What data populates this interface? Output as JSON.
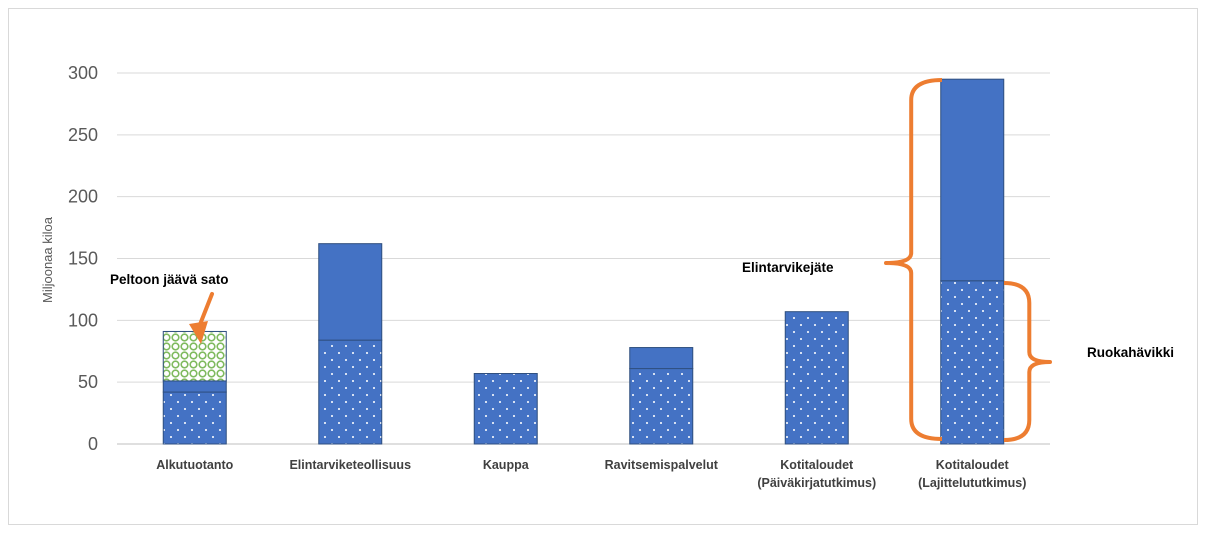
{
  "chart_data": {
    "type": "bar",
    "stacked": true,
    "ylabel": "Miljoonaa kiloa",
    "ylim": [
      0,
      300
    ],
    "yticks": [
      0,
      50,
      100,
      150,
      200,
      250,
      300
    ],
    "grid": true,
    "categories": [
      [
        "Alkutuotanto"
      ],
      [
        "Elintarviketeollisuus"
      ],
      [
        "Kauppa"
      ],
      [
        "Ravitsemispalvelut"
      ],
      [
        "Kotitaloudet",
        "(Päiväkirjatutkimus)"
      ],
      [
        "Kotitaloudet",
        "(Lajittelututkimus)"
      ]
    ],
    "series": [
      {
        "key": "ruokahavikki",
        "color": "#4472c4",
        "pattern": "dots",
        "values": [
          42,
          84,
          57,
          61,
          107,
          132
        ]
      },
      {
        "key": "elintarvikejate",
        "color": "#4472c4",
        "pattern": "solid",
        "values": [
          9,
          78,
          0,
          17,
          0,
          163
        ]
      },
      {
        "key": "peltoon",
        "color": "#a9d18e",
        "pattern": "lattice",
        "values": [
          40,
          0,
          0,
          0,
          0,
          0
        ]
      }
    ],
    "annotations": {
      "peltoon": "Peltoon jäävä sato",
      "elintarvikejate": "Elintarvikejäte",
      "ruokahavikki": "Ruokahävikki"
    },
    "annotation_color": "#ed7d31"
  }
}
